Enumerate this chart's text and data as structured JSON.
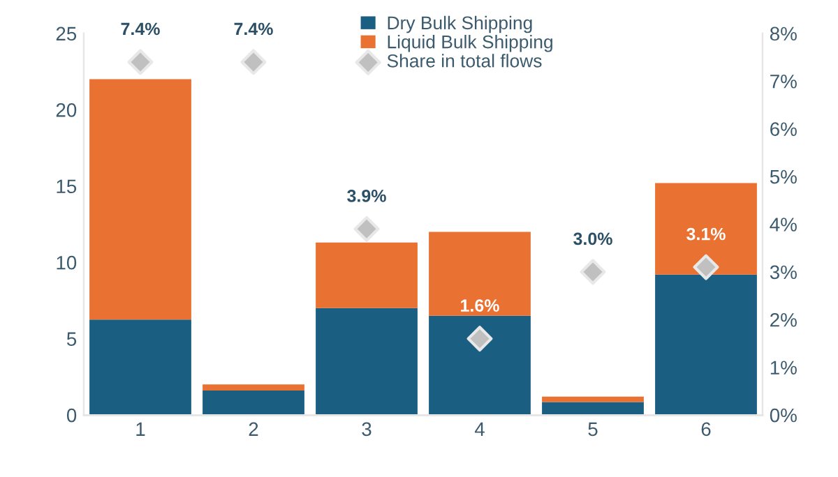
{
  "chart_data": {
    "type": "bar",
    "stacked": true,
    "categories": [
      "1",
      "2",
      "3",
      "4",
      "5",
      "6"
    ],
    "series": [
      {
        "name": "Dry Bulk Shipping",
        "color": "#1a5f82",
        "values": [
          6.25,
          1.6,
          7.0,
          6.5,
          0.85,
          9.2
        ]
      },
      {
        "name": "Liquid Bulk Shipping",
        "color": "#e97132",
        "values": [
          15.75,
          0.4,
          4.3,
          5.5,
          0.35,
          6.0
        ]
      },
      {
        "name": "Share in total flows",
        "type": "scatter",
        "axis": "y2",
        "color": "#c0c0c0",
        "marker": "diamond",
        "values": [
          7.4,
          7.4,
          3.9,
          1.6,
          3.0,
          3.1
        ],
        "value_labels": [
          "7.4%",
          "7.4%",
          "3.9%",
          "1.6%",
          "3.0%",
          "3.1%"
        ]
      }
    ],
    "ylim": [
      0,
      25
    ],
    "yticks": [
      0,
      5,
      10,
      15,
      20,
      25
    ],
    "y2lim": [
      0,
      8
    ],
    "y2ticks": [
      {
        "value": 0,
        "label": "0%"
      },
      {
        "value": 1,
        "label": "1%"
      },
      {
        "value": 2,
        "label": "2%"
      },
      {
        "value": 3,
        "label": "3%"
      },
      {
        "value": 4,
        "label": "4%"
      },
      {
        "value": 5,
        "label": "5%"
      },
      {
        "value": 6,
        "label": "6%"
      },
      {
        "value": 7,
        "label": "7%"
      },
      {
        "value": 8,
        "label": "8%"
      }
    ],
    "grid": false,
    "legend": "top"
  }
}
